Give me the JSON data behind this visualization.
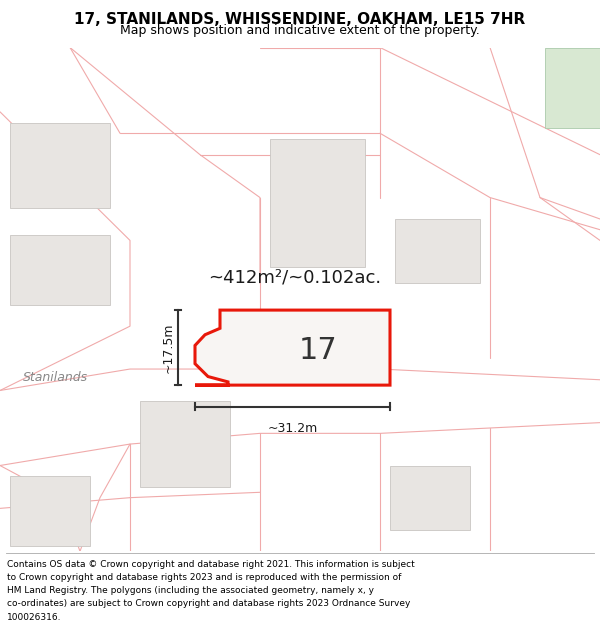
{
  "title": "17, STANILANDS, WHISSENDINE, OAKHAM, LE15 7HR",
  "subtitle": "Map shows position and indicative extent of the property.",
  "footer_lines": [
    "Contains OS data © Crown copyright and database right 2021. This information is subject",
    "to Crown copyright and database rights 2023 and is reproduced with the permission of",
    "HM Land Registry. The polygons (including the associated geometry, namely x, y",
    "co-ordinates) are subject to Crown copyright and database rights 2023 Ordnance Survey",
    "100026316."
  ],
  "bg_color": "#ffffff",
  "map_bg": "#f8f5f3",
  "property_edge": "#e8180a",
  "property_fill": "#f8f5f3",
  "boundary_color": "#f0aaaa",
  "building_fill": "#e8e5e2",
  "building_edge": "#c8c5c2",
  "green_fill": "#d8e8d0",
  "label_17": "17",
  "label_area": "~412m²/~0.102ac.",
  "label_width": "~31.2m",
  "label_height": "~17.5m",
  "label_street": "Stanilands",
  "title_fontsize": 11,
  "subtitle_fontsize": 9,
  "footer_fontsize": 6.5
}
